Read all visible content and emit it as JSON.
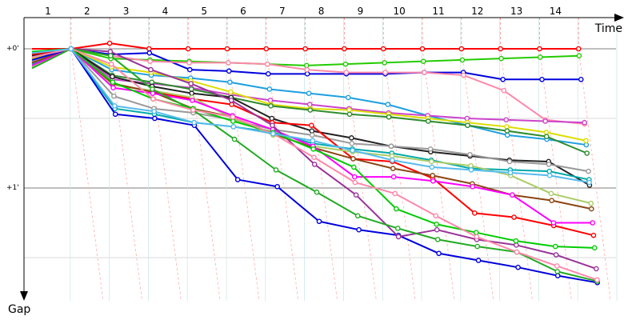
{
  "chart_data": {
    "type": "line",
    "xlabel": "Time",
    "ylabel": "Gap",
    "x_ticks": [
      "1",
      "2",
      "3",
      "4",
      "5",
      "6",
      "7",
      "8",
      "9",
      "10",
      "11",
      "12",
      "13",
      "14"
    ],
    "y_ticks": [
      "+0'",
      "+1'"
    ],
    "y_range_minutes": [
      -0.15,
      1.6
    ],
    "grid": true,
    "grid_step_minutes": 0.5,
    "legend": "none",
    "series": [
      {
        "color": "#ff0000",
        "values": [
          0.0,
          0.0,
          -0.04,
          0.0,
          0.0,
          0.0,
          0.0,
          0.0,
          0.0,
          0.0,
          0.0,
          0.0,
          0.0,
          0.0,
          0.0
        ]
      },
      {
        "color": "#22cc00",
        "values": [
          0.04,
          0.0,
          0.07,
          0.08,
          0.09,
          0.1,
          0.11,
          0.12,
          0.11,
          0.1,
          0.09,
          0.08,
          0.07,
          0.06,
          0.05
        ]
      },
      {
        "color": "#0000dd",
        "values": [
          0.06,
          0.0,
          0.04,
          0.03,
          0.15,
          0.16,
          0.18,
          0.18,
          0.18,
          0.18,
          0.17,
          0.17,
          0.22,
          0.22,
          0.22
        ]
      },
      {
        "color": "#ff88aa",
        "values": [
          0.08,
          0.0,
          0.05,
          0.09,
          0.1,
          0.1,
          0.11,
          0.15,
          0.17,
          0.17,
          0.17,
          0.19,
          0.3,
          0.51,
          0.54
        ]
      },
      {
        "color": "#1e9fe0",
        "values": [
          0.05,
          0.0,
          0.15,
          0.19,
          0.21,
          0.24,
          0.29,
          0.32,
          0.35,
          0.4,
          0.48,
          0.55,
          0.62,
          0.65,
          0.69
        ]
      },
      {
        "color": "#cc44cc",
        "values": [
          0.1,
          0.0,
          0.22,
          0.25,
          0.28,
          0.33,
          0.37,
          0.4,
          0.43,
          0.46,
          0.48,
          0.5,
          0.51,
          0.52,
          0.53
        ]
      },
      {
        "color": "#dddd00",
        "values": [
          0.07,
          0.0,
          0.13,
          0.17,
          0.23,
          0.31,
          0.4,
          0.43,
          0.44,
          0.47,
          0.5,
          0.53,
          0.56,
          0.6,
          0.66
        ]
      },
      {
        "color": "#2e8b2e",
        "values": [
          0.03,
          0.0,
          0.19,
          0.24,
          0.29,
          0.35,
          0.41,
          0.44,
          0.47,
          0.49,
          0.52,
          0.55,
          0.59,
          0.63,
          0.75
        ]
      },
      {
        "color": "#222222",
        "values": [
          0.05,
          0.0,
          0.2,
          0.27,
          0.32,
          0.35,
          0.5,
          0.59,
          0.64,
          0.7,
          0.74,
          0.77,
          0.8,
          0.81,
          0.98
        ]
      },
      {
        "color": "#999999",
        "values": [
          0.09,
          0.0,
          0.34,
          0.43,
          0.46,
          0.51,
          0.58,
          0.62,
          0.68,
          0.7,
          0.72,
          0.76,
          0.81,
          0.83,
          0.88
        ]
      },
      {
        "color": "#ff0000",
        "values": [
          0.04,
          0.0,
          0.25,
          0.31,
          0.36,
          0.4,
          0.53,
          0.55,
          0.79,
          0.81,
          0.93,
          1.18,
          1.21,
          1.27,
          1.34
        ]
      },
      {
        "color": "#00aaaa",
        "values": [
          0.11,
          0.0,
          0.43,
          0.47,
          0.53,
          0.56,
          0.6,
          0.68,
          0.72,
          0.75,
          0.8,
          0.86,
          0.87,
          0.88,
          0.94
        ]
      },
      {
        "color": "#aacc66",
        "values": [
          0.13,
          0.0,
          0.26,
          0.3,
          0.35,
          0.5,
          0.62,
          0.7,
          0.74,
          0.77,
          0.81,
          0.84,
          0.91,
          1.04,
          1.11
        ]
      },
      {
        "color": "#8b4513",
        "values": [
          0.1,
          0.0,
          0.25,
          0.31,
          0.43,
          0.49,
          0.61,
          0.71,
          0.79,
          0.86,
          0.91,
          0.97,
          1.05,
          1.09,
          1.15
        ]
      },
      {
        "color": "#ff00ff",
        "values": [
          0.12,
          0.0,
          0.28,
          0.32,
          0.37,
          0.48,
          0.58,
          0.7,
          0.92,
          0.92,
          0.95,
          0.99,
          1.05,
          1.25,
          1.25
        ]
      },
      {
        "color": "#0000dd",
        "values": [
          0.08,
          0.0,
          0.47,
          0.5,
          0.55,
          0.94,
          0.99,
          1.24,
          1.3,
          1.34,
          1.47,
          1.52,
          1.57,
          1.63,
          1.68
        ]
      },
      {
        "color": "#993399",
        "values": [
          0.06,
          0.0,
          0.02,
          0.15,
          0.25,
          0.37,
          0.55,
          0.83,
          1.05,
          1.35,
          1.3,
          1.37,
          1.41,
          1.48,
          1.58
        ]
      },
      {
        "color": "#22aa22",
        "values": [
          0.14,
          0.0,
          0.05,
          0.29,
          0.44,
          0.65,
          0.87,
          1.03,
          1.2,
          1.29,
          1.37,
          1.42,
          1.46,
          1.6,
          1.67
        ]
      },
      {
        "color": "#00cc00",
        "values": [
          0.02,
          0.0,
          0.24,
          0.36,
          0.43,
          0.52,
          0.6,
          0.72,
          0.85,
          1.15,
          1.26,
          1.32,
          1.38,
          1.42,
          1.43
        ]
      },
      {
        "color": "#ff88aa",
        "values": [
          0.06,
          0.0,
          0.11,
          0.36,
          0.44,
          0.49,
          0.61,
          0.78,
          0.96,
          1.04,
          1.2,
          1.35,
          1.46,
          1.56,
          1.66
        ]
      },
      {
        "color": "#55bbee",
        "values": [
          0.03,
          0.0,
          0.41,
          0.45,
          0.53,
          0.56,
          0.61,
          0.66,
          0.73,
          0.8,
          0.85,
          0.87,
          0.89,
          0.91,
          0.96
        ]
      }
    ]
  }
}
